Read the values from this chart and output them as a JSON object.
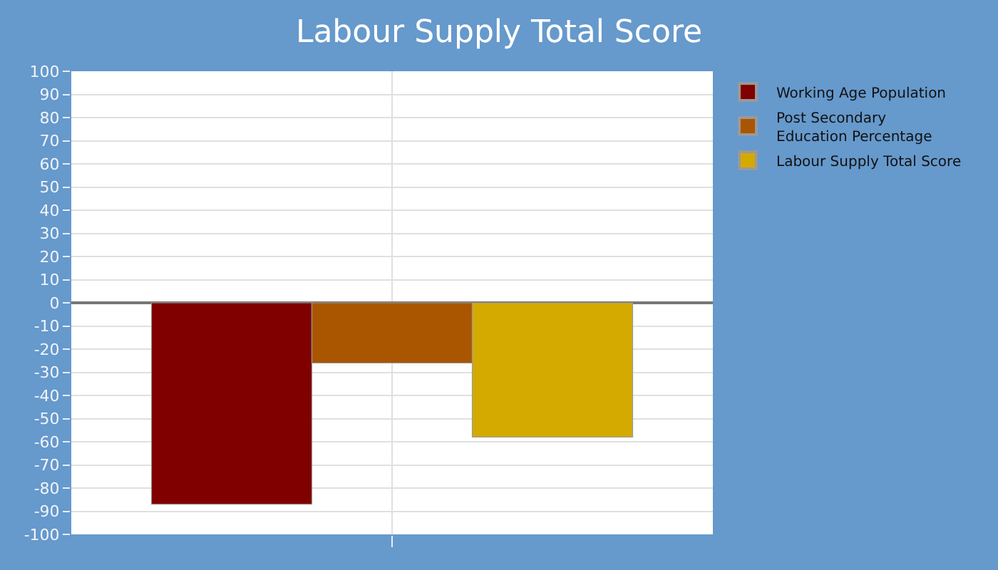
{
  "chart_data": {
    "type": "bar",
    "title": "Labour Supply Total Score",
    "categories": [
      null
    ],
    "series": [
      {
        "name": "Working Age Population",
        "color": "#800000",
        "values": [
          -87
        ]
      },
      {
        "name": "Post Secondary\nEducation Percentage",
        "color": "#aa5500",
        "values": [
          -26
        ]
      },
      {
        "name": "Labour Supply Total Score",
        "color": "#d4aa00",
        "values": [
          -58
        ]
      }
    ],
    "ylim": [
      -100,
      100
    ],
    "yticks": [
      -100,
      -90,
      -80,
      -70,
      -60,
      -50,
      -40,
      -30,
      -20,
      -10,
      0,
      10,
      20,
      30,
      40,
      50,
      60,
      70,
      80,
      90,
      100
    ],
    "grid": true,
    "legend": "top right",
    "tick_labels": "y"
  }
}
